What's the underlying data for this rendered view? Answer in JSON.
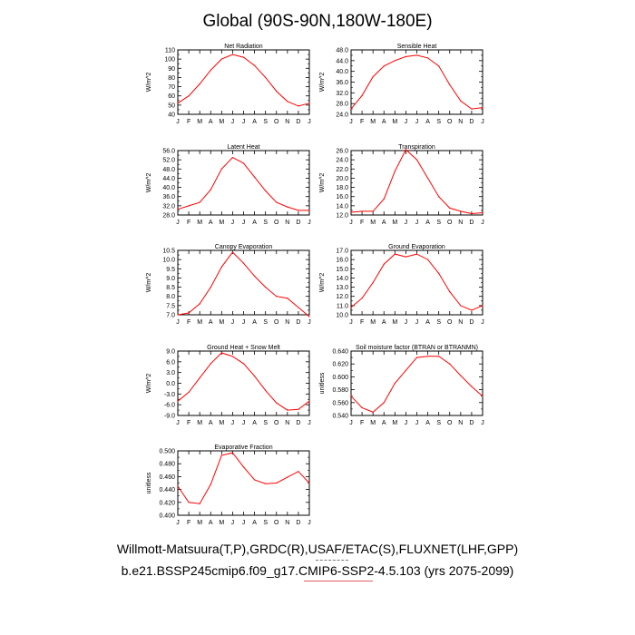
{
  "title": "Global (90S-90N,180W-180E)",
  "footer": {
    "line1": "Willmott-Matsuura(T,P),GRDC(R),USAF/ETAC(S),FLUXNET(LHF,GPP)",
    "line2": "b.e21.BSSP245cmip6.f09_g17.CMIP6-SSP2-4.5.103 (yrs 2075-2099)"
  },
  "colors": {
    "series": "#ff0000",
    "accent": "#e06060"
  },
  "chart_data": [
    {
      "type": "line",
      "title": "Net Radiation",
      "ylabel": "W/m^2",
      "categories": [
        "J",
        "F",
        "M",
        "A",
        "M",
        "J",
        "J",
        "A",
        "S",
        "O",
        "N",
        "D",
        "J"
      ],
      "yticks": [
        "110",
        "100",
        "90",
        "80",
        "70",
        "60",
        "50",
        "40"
      ],
      "ylim": [
        40,
        110
      ],
      "values": [
        52,
        60,
        73,
        88,
        100,
        105,
        102,
        93,
        80,
        65,
        54,
        49,
        52
      ]
    },
    {
      "type": "line",
      "title": "Sensible Heat",
      "ylabel": "W/m^2",
      "categories": [
        "J",
        "F",
        "M",
        "A",
        "M",
        "J",
        "J",
        "A",
        "S",
        "O",
        "N",
        "D",
        "J"
      ],
      "yticks": [
        "48.0",
        "44.0",
        "40.0",
        "36.0",
        "32.0",
        "28.0",
        "24.0"
      ],
      "ylim": [
        24,
        48
      ],
      "values": [
        26,
        31,
        38,
        42,
        44,
        45.5,
        46,
        45,
        42,
        35,
        29,
        26,
        26.5
      ]
    },
    {
      "type": "line",
      "title": "Latent Heat",
      "ylabel": "W/m^2",
      "categories": [
        "J",
        "F",
        "M",
        "A",
        "M",
        "J",
        "J",
        "A",
        "S",
        "O",
        "N",
        "D",
        "J"
      ],
      "yticks": [
        "56.0",
        "52.0",
        "48.0",
        "44.0",
        "40.0",
        "36.0",
        "32.0",
        "28.0"
      ],
      "ylim": [
        28,
        56
      ],
      "values": [
        30.5,
        32,
        33.5,
        39,
        48,
        53,
        50.5,
        44.5,
        38.5,
        33.5,
        31.5,
        30,
        30
      ]
    },
    {
      "type": "line",
      "title": "Transpiration",
      "ylabel": "W/m^2",
      "categories": [
        "J",
        "F",
        "M",
        "A",
        "M",
        "J",
        "J",
        "A",
        "S",
        "O",
        "N",
        "D",
        "J"
      ],
      "yticks": [
        "26.0",
        "24.0",
        "22.0",
        "20.0",
        "18.0",
        "16.0",
        "14.0",
        "12.0"
      ],
      "ylim": [
        12,
        26
      ],
      "values": [
        12.6,
        12.8,
        12.8,
        15.5,
        21.5,
        26.2,
        24,
        20,
        16,
        13.5,
        12.8,
        12.3,
        12.5
      ]
    },
    {
      "type": "line",
      "title": "Canopy Evaporation",
      "ylabel": "W/m^2",
      "categories": [
        "J",
        "F",
        "M",
        "A",
        "M",
        "J",
        "J",
        "A",
        "S",
        "O",
        "N",
        "D",
        "J"
      ],
      "yticks": [
        "10.5",
        "10.0",
        "9.5",
        "9.0",
        "8.5",
        "8.0",
        "7.5",
        "7.0"
      ],
      "ylim": [
        7,
        10.5
      ],
      "values": [
        7,
        7.1,
        7.6,
        8.5,
        9.6,
        10.4,
        9.8,
        9.1,
        8.5,
        8.0,
        7.9,
        7.4,
        6.9
      ]
    },
    {
      "type": "line",
      "title": "Ground Evaporation",
      "ylabel": "W/m^2",
      "categories": [
        "J",
        "F",
        "M",
        "A",
        "M",
        "J",
        "J",
        "A",
        "S",
        "O",
        "N",
        "D",
        "J"
      ],
      "yticks": [
        "17.0",
        "16.0",
        "15.0",
        "14.0",
        "13.0",
        "12.0",
        "11.0",
        "10.0"
      ],
      "ylim": [
        10,
        17
      ],
      "values": [
        10.8,
        11.8,
        13.5,
        15.5,
        16.6,
        16.3,
        16.6,
        16,
        14.5,
        12.5,
        11,
        10.5,
        11
      ]
    },
    {
      "type": "line",
      "title": "Ground Heat + Snow Melt",
      "ylabel": "W/m^2",
      "categories": [
        "J",
        "F",
        "M",
        "A",
        "M",
        "J",
        "J",
        "A",
        "S",
        "O",
        "N",
        "D",
        "J"
      ],
      "yticks": [
        "9.0",
        "6.0",
        "3.0",
        "0.0",
        "-3.0",
        "-6.0",
        "-9.0"
      ],
      "ylim": [
        -9,
        9
      ],
      "values": [
        -5,
        -2.5,
        1.5,
        5.5,
        8.5,
        7.5,
        5.5,
        2,
        -2,
        -5.5,
        -7.5,
        -7.3,
        -5
      ]
    },
    {
      "type": "line",
      "title": "Soil moisture factor (BTRAN or BTRANMN)",
      "ylabel": "unitless",
      "categories": [
        "J",
        "F",
        "M",
        "A",
        "M",
        "J",
        "J",
        "A",
        "S",
        "O",
        "N",
        "D",
        "J"
      ],
      "yticks": [
        "0.640",
        "0.620",
        "0.600",
        "0.580",
        "0.560",
        "0.540"
      ],
      "ylim": [
        0.54,
        0.64
      ],
      "values": [
        0.57,
        0.552,
        0.545,
        0.56,
        0.59,
        0.61,
        0.63,
        0.632,
        0.632,
        0.62,
        0.602,
        0.585,
        0.57
      ]
    },
    {
      "type": "line",
      "title": "Evaporative Fraction",
      "ylabel": "unitless",
      "categories": [
        "J",
        "F",
        "M",
        "A",
        "M",
        "J",
        "J",
        "A",
        "S",
        "O",
        "N",
        "D",
        "J"
      ],
      "yticks": [
        "0.500",
        "0.480",
        "0.460",
        "0.440",
        "0.420",
        "0.400"
      ],
      "ylim": [
        0.4,
        0.5
      ],
      "values": [
        0.445,
        0.42,
        0.418,
        0.448,
        0.493,
        0.497,
        0.475,
        0.455,
        0.449,
        0.45,
        0.459,
        0.468,
        0.45
      ]
    }
  ]
}
